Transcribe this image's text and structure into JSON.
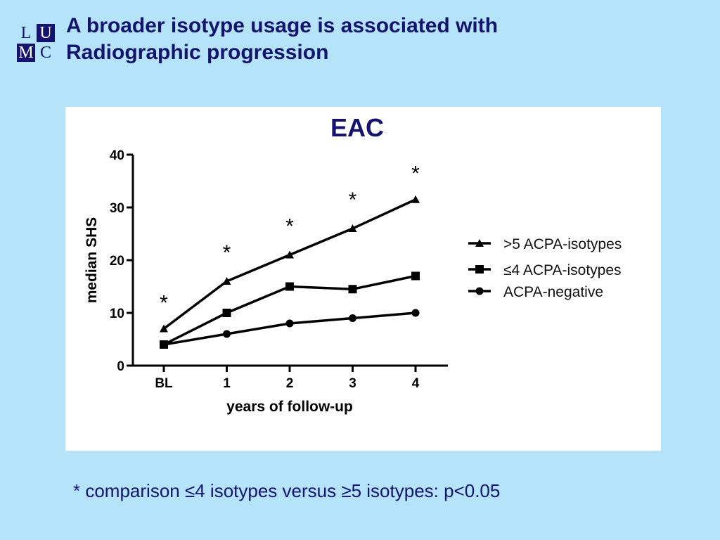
{
  "logo": {
    "letters": [
      "L",
      "U",
      "M",
      "C"
    ]
  },
  "slide": {
    "title_line1": "A broader isotype usage is associated with",
    "title_line2": "Radiographic progression",
    "footnote": "* comparison ≤4 isotypes versus ≥5 isotypes: p<0.05"
  },
  "colors": {
    "background": "#b4e3fa",
    "title": "#14146e",
    "chart_title": "#14146e",
    "series": "#000000"
  },
  "chart_data": {
    "type": "line",
    "title": "EAC",
    "xlabel": "years of follow-up",
    "ylabel": "median SHS",
    "categories": [
      "BL",
      "1",
      "2",
      "3",
      "4"
    ],
    "ylim": [
      0,
      40
    ],
    "yticks": [
      0,
      10,
      20,
      30,
      40
    ],
    "grid": false,
    "legend_position": "right",
    "series": [
      {
        "name": ">5 ACPA-isotypes",
        "marker": "triangle",
        "values": [
          7,
          16,
          21,
          26,
          31.5
        ]
      },
      {
        "name": "≤4 ACPA-isotypes",
        "marker": "square",
        "values": [
          4,
          10,
          15,
          14.5,
          17
        ]
      },
      {
        "name": "ACPA-negative",
        "marker": "circle",
        "values": [
          4,
          6,
          8,
          9,
          10
        ]
      }
    ],
    "annotations": [
      {
        "text": "*",
        "x": "BL",
        "y": 12.5
      },
      {
        "text": "*",
        "x": "1",
        "y": 22
      },
      {
        "text": "*",
        "x": "2",
        "y": 27
      },
      {
        "text": "*",
        "x": "3",
        "y": 32
      },
      {
        "text": "*",
        "x": "4",
        "y": 37
      }
    ]
  }
}
